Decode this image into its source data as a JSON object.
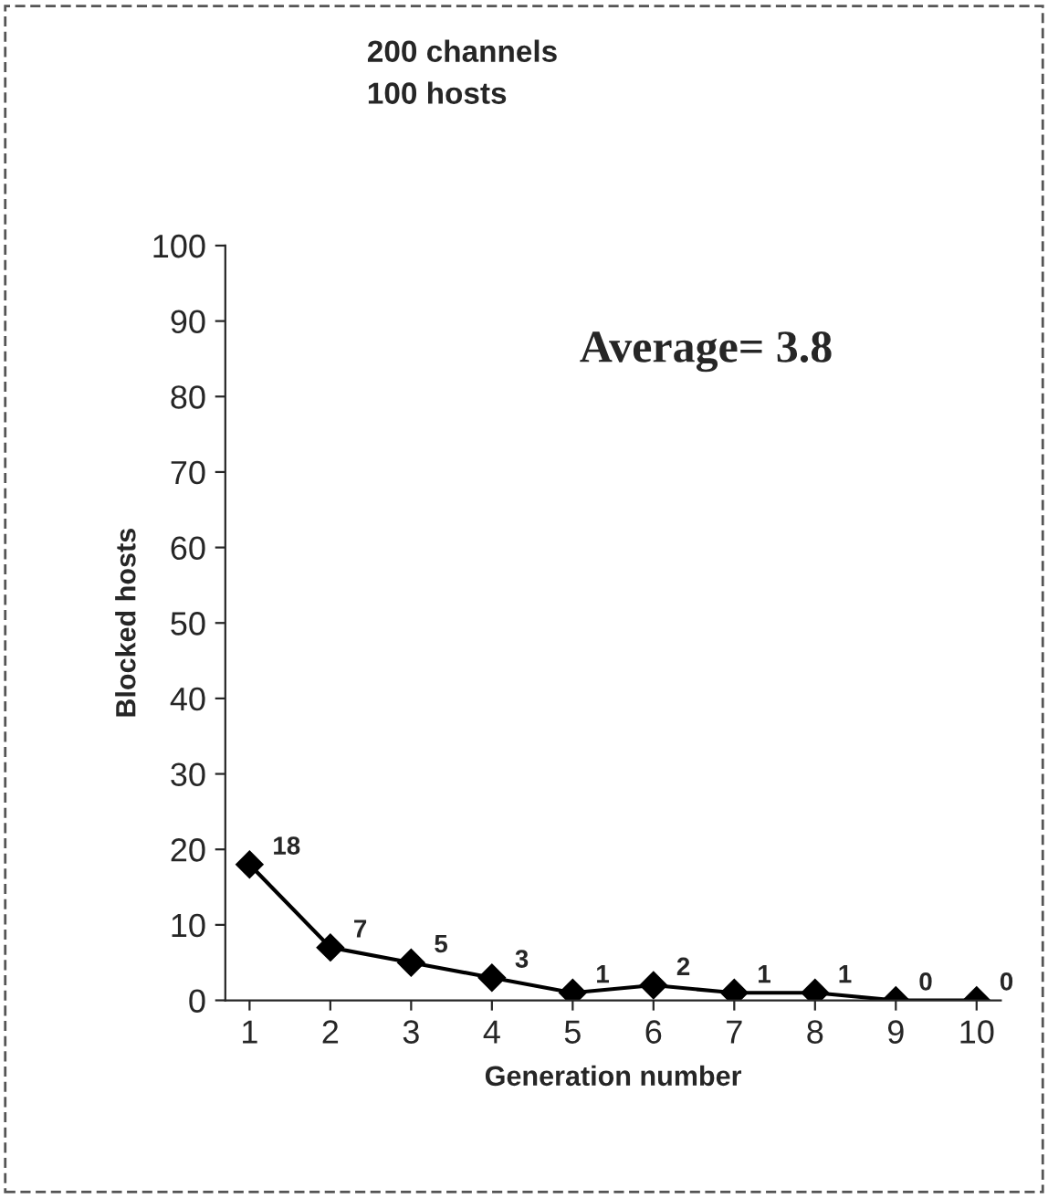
{
  "chart_data": {
    "type": "line",
    "title": "200 channels",
    "subtitle": "100 hosts",
    "xlabel": "Generation number",
    "ylabel": "Blocked hosts",
    "categories": [
      "1",
      "2",
      "3",
      "4",
      "5",
      "6",
      "7",
      "8",
      "9",
      "10"
    ],
    "series": [
      {
        "color": "#000000",
        "values": [
          18,
          7,
          5,
          3,
          1,
          2,
          1,
          1,
          0,
          0
        ]
      }
    ],
    "ylim": [
      0,
      100
    ],
    "yticks": [
      0,
      10,
      20,
      30,
      40,
      50,
      60,
      70,
      80,
      90,
      100
    ],
    "annotations": [
      "Average= 3.8"
    ],
    "data_labels": true,
    "marker": "diamond",
    "line_style": "solid",
    "grid": false,
    "legend": false
  }
}
